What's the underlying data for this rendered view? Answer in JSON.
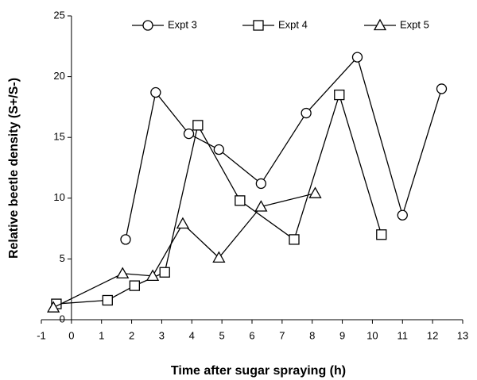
{
  "chart_data": {
    "type": "line",
    "x_label": "Time after sugar spraying (h)",
    "y_label": "Relative beetle density (S+/S-)",
    "xlim": [
      -1,
      13
    ],
    "xticks": [
      -1,
      0,
      1,
      2,
      3,
      4,
      5,
      6,
      7,
      8,
      9,
      10,
      11,
      12,
      13
    ],
    "ylim": [
      0,
      25
    ],
    "yticks": [
      0,
      5,
      10,
      15,
      20,
      25
    ],
    "grid": false,
    "legend": "top",
    "series": [
      {
        "name": "Expt 3",
        "color": "#000000",
        "marker": "circle",
        "x": [
          1.8,
          2.8,
          3.9,
          4.9,
          6.3,
          7.8,
          9.5,
          11.0,
          12.3
        ],
        "values": [
          6.6,
          18.7,
          15.3,
          14.0,
          11.2,
          17.0,
          21.6,
          8.6,
          19.0
        ]
      },
      {
        "name": "Expt 4",
        "color": "#000000",
        "marker": "square",
        "x": [
          -0.5,
          1.2,
          2.1,
          3.1,
          4.2,
          5.6,
          7.4,
          8.9,
          10.3
        ],
        "values": [
          1.3,
          1.6,
          2.8,
          3.9,
          16.0,
          9.8,
          6.6,
          18.5,
          7.0
        ]
      },
      {
        "name": "Expt 5",
        "color": "#000000",
        "marker": "triangle",
        "x": [
          -0.6,
          1.7,
          2.7,
          3.7,
          4.9,
          6.3,
          8.1
        ],
        "values": [
          1.0,
          3.8,
          3.6,
          7.9,
          5.1,
          9.3,
          10.4
        ]
      }
    ]
  }
}
